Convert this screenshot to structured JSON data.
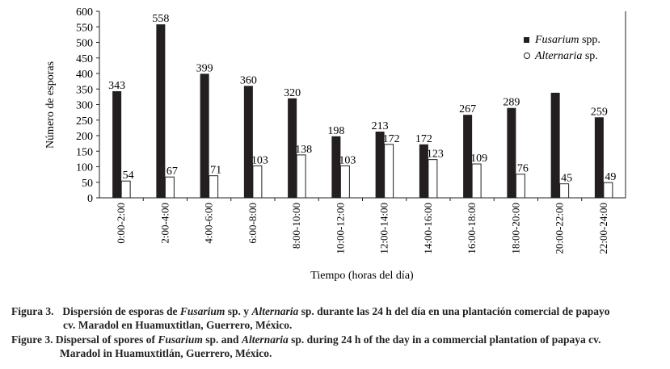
{
  "chart_data": {
    "type": "bar",
    "xlabel": "Tiempo (horas del día)",
    "ylabel": "Número de esporas",
    "ylim": [
      0,
      600
    ],
    "yticks": [
      0,
      50,
      100,
      150,
      200,
      250,
      300,
      350,
      400,
      450,
      500,
      550,
      600
    ],
    "grid": false,
    "legend_position": "top-right",
    "categories": [
      "0:00-2:00",
      "2:00-4:00",
      "4:00-6:00",
      "6:00-8:00",
      "8:00-10:00",
      "10:00-12:00",
      "12:00-14:00",
      "14:00-16:00",
      "16:00-18:00",
      "18:00-20:00",
      "20:00-22:00",
      "22:00-24:00"
    ],
    "series": [
      {
        "name": "Fusarium",
        "name_suffix": " spp.",
        "color": "#231f20",
        "values": [
          343,
          558,
          399,
          360,
          320,
          198,
          213,
          172,
          267,
          289,
          338,
          259
        ],
        "labels": [
          "343",
          "558",
          "399",
          "360",
          "320",
          "198",
          "213",
          "172",
          "267",
          "289",
          "",
          "259"
        ]
      },
      {
        "name": "Alternaria",
        "name_suffix": " sp.",
        "color": "#ffffff",
        "values": [
          54,
          67,
          71,
          103,
          138,
          103,
          172,
          123,
          109,
          76,
          45,
          49
        ],
        "labels": [
          "54",
          "67",
          "71",
          "103",
          "138",
          "103",
          "172",
          "123",
          "109",
          "76",
          "45",
          "49"
        ]
      }
    ]
  },
  "caption": {
    "es_label": "Figura 3.",
    "es_line1_a": "Dispersión de esporas de ",
    "es_line1_b": "Fusarium",
    "es_line1_c": " sp. y ",
    "es_line1_d": "Alternaria",
    "es_line1_e": " sp. durante las 24 h del día en una plantación comercial de papayo",
    "es_line2": "cv. Maradol en Huamuxtitlan, Guerrero, México.",
    "en_label": "Figure 3.",
    "en_line1_a": "Dispersal of spores of ",
    "en_line1_b": "Fusarium",
    "en_line1_c": " sp. and ",
    "en_line1_d": "Alternaria",
    "en_line1_e": " sp. during 24 h of the day in a commercial plantation of papaya cv.",
    "en_line2": "Maradol in Huamuxtitlán, Guerrero, México."
  }
}
